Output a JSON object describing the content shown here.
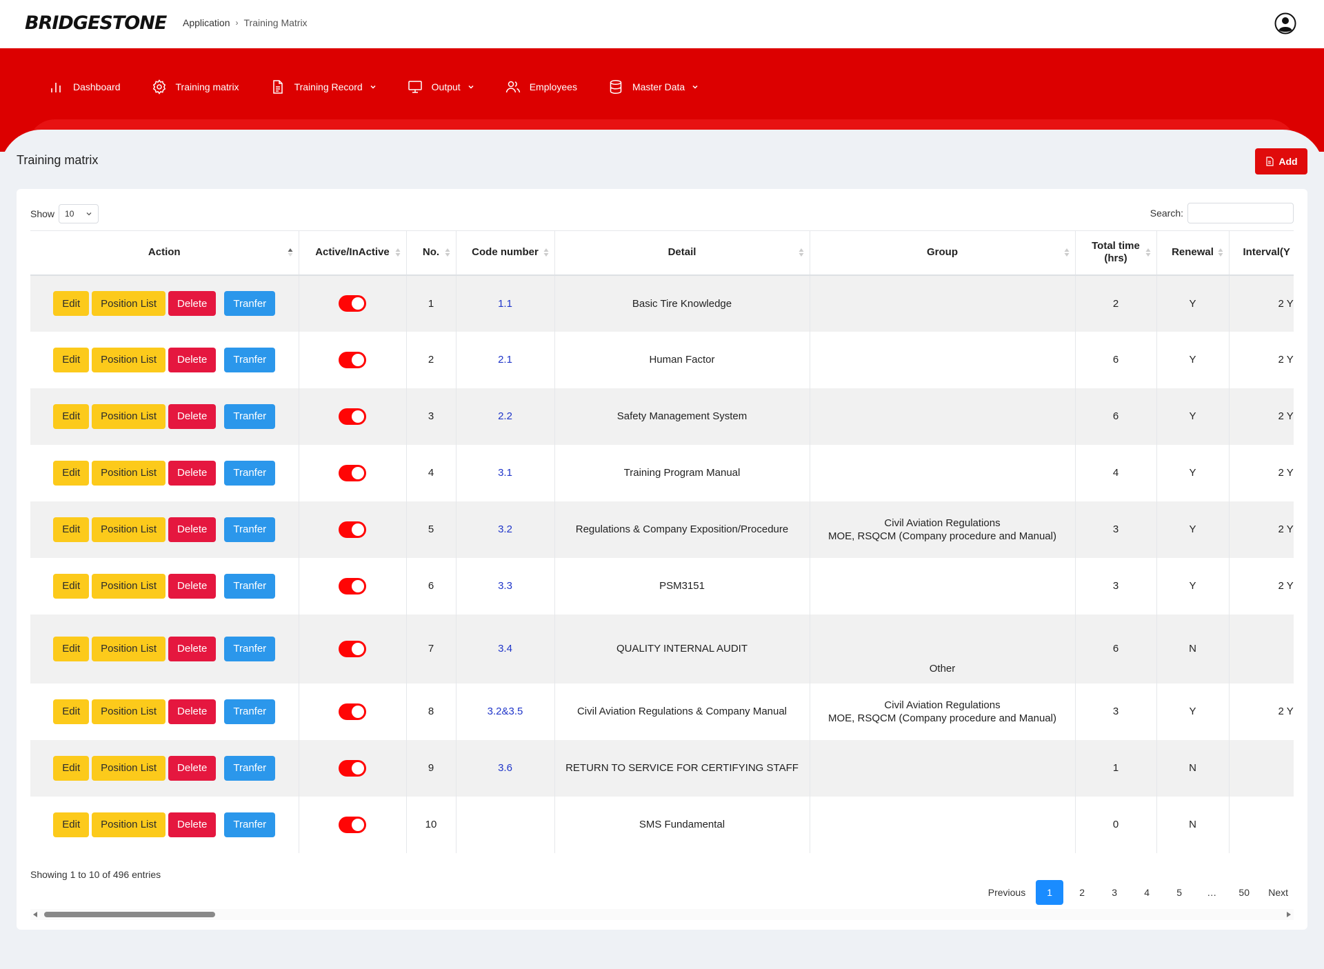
{
  "header": {
    "logo": "BRIDGESTONE",
    "breadcrumb": [
      "Application",
      "Training Matrix"
    ]
  },
  "nav": {
    "items": [
      {
        "label": "Dashboard",
        "icon": "bar-chart-icon",
        "dropdown": false
      },
      {
        "label": "Training matrix",
        "icon": "gear-icon",
        "dropdown": false
      },
      {
        "label": "Training Record",
        "icon": "document-icon",
        "dropdown": true
      },
      {
        "label": "Output",
        "icon": "monitor-icon",
        "dropdown": true
      },
      {
        "label": "Employees",
        "icon": "users-icon",
        "dropdown": false
      },
      {
        "label": "Master Data",
        "icon": "database-icon",
        "dropdown": true
      }
    ]
  },
  "page": {
    "title": "Training matrix",
    "add_label": "Add"
  },
  "table_controls": {
    "show_label": "Show",
    "show_value": "10",
    "search_label": "Search:",
    "search_value": ""
  },
  "table": {
    "columns": [
      "Action",
      "Active/InActive",
      "No.",
      "Code number",
      "Detail",
      "Group",
      "Total time (hrs)",
      "Renewal",
      "Interval(Y"
    ],
    "action_labels": {
      "edit": "Edit",
      "position_list": "Position List",
      "delete": "Delete",
      "transfer": "Tranfer"
    },
    "rows": [
      {
        "no": "1",
        "code": "1.1",
        "detail": "Basic Tire Knowledge",
        "group": "",
        "total": "2",
        "renewal": "Y",
        "interval": "2 Y",
        "active": true
      },
      {
        "no": "2",
        "code": "2.1",
        "detail": "Human Factor",
        "group": "",
        "total": "6",
        "renewal": "Y",
        "interval": "2 Y",
        "active": true
      },
      {
        "no": "3",
        "code": "2.2",
        "detail": "Safety Management System",
        "group": "",
        "total": "6",
        "renewal": "Y",
        "interval": "2 Y",
        "active": true
      },
      {
        "no": "4",
        "code": "3.1",
        "detail": "Training Program Manual",
        "group": "",
        "total": "4",
        "renewal": "Y",
        "interval": "2 Y",
        "active": true
      },
      {
        "no": "5",
        "code": "3.2",
        "detail": "Regulations & Company Exposition/Procedure",
        "group": "Civil Aviation Regulations\nMOE, RSQCM (Company procedure and Manual)",
        "total": "3",
        "renewal": "Y",
        "interval": "2 Y",
        "active": true
      },
      {
        "no": "6",
        "code": "3.3",
        "detail": "PSM3151",
        "group": "",
        "total": "3",
        "renewal": "Y",
        "interval": "2 Y",
        "active": true
      },
      {
        "no": "7",
        "code": "3.4",
        "detail": "QUALITY INTERNAL AUDIT",
        "group": "Other",
        "total": "6",
        "renewal": "N",
        "interval": "",
        "active": true
      },
      {
        "no": "8",
        "code": "3.2&3.5",
        "detail": "Civil Aviation Regulations & Company Manual",
        "group": "Civil Aviation Regulations\nMOE, RSQCM (Company procedure and Manual)",
        "total": "3",
        "renewal": "Y",
        "interval": "2 Y",
        "active": true
      },
      {
        "no": "9",
        "code": "3.6",
        "detail": "RETURN TO SERVICE FOR CERTIFYING STAFF",
        "group": "",
        "total": "1",
        "renewal": "N",
        "interval": "",
        "active": true
      },
      {
        "no": "10",
        "code": "",
        "detail": "SMS Fundamental",
        "group": "",
        "total": "0",
        "renewal": "N",
        "interval": "",
        "active": true
      }
    ]
  },
  "footer": {
    "info": "Showing 1 to 10 of 496 entries",
    "pagination": {
      "previous": "Previous",
      "pages": [
        "1",
        "2",
        "3",
        "4",
        "5",
        "…",
        "50"
      ],
      "active": "1",
      "next": "Next"
    }
  },
  "colors": {
    "brand_red": "#dc0000",
    "add_red": "#e00b0b",
    "edit_yellow": "#fcca1b",
    "delete_red": "#e5173f",
    "transfer_blue": "#2b97eb",
    "toggle_red": "#ff0505",
    "page_active": "#1a8cff"
  }
}
